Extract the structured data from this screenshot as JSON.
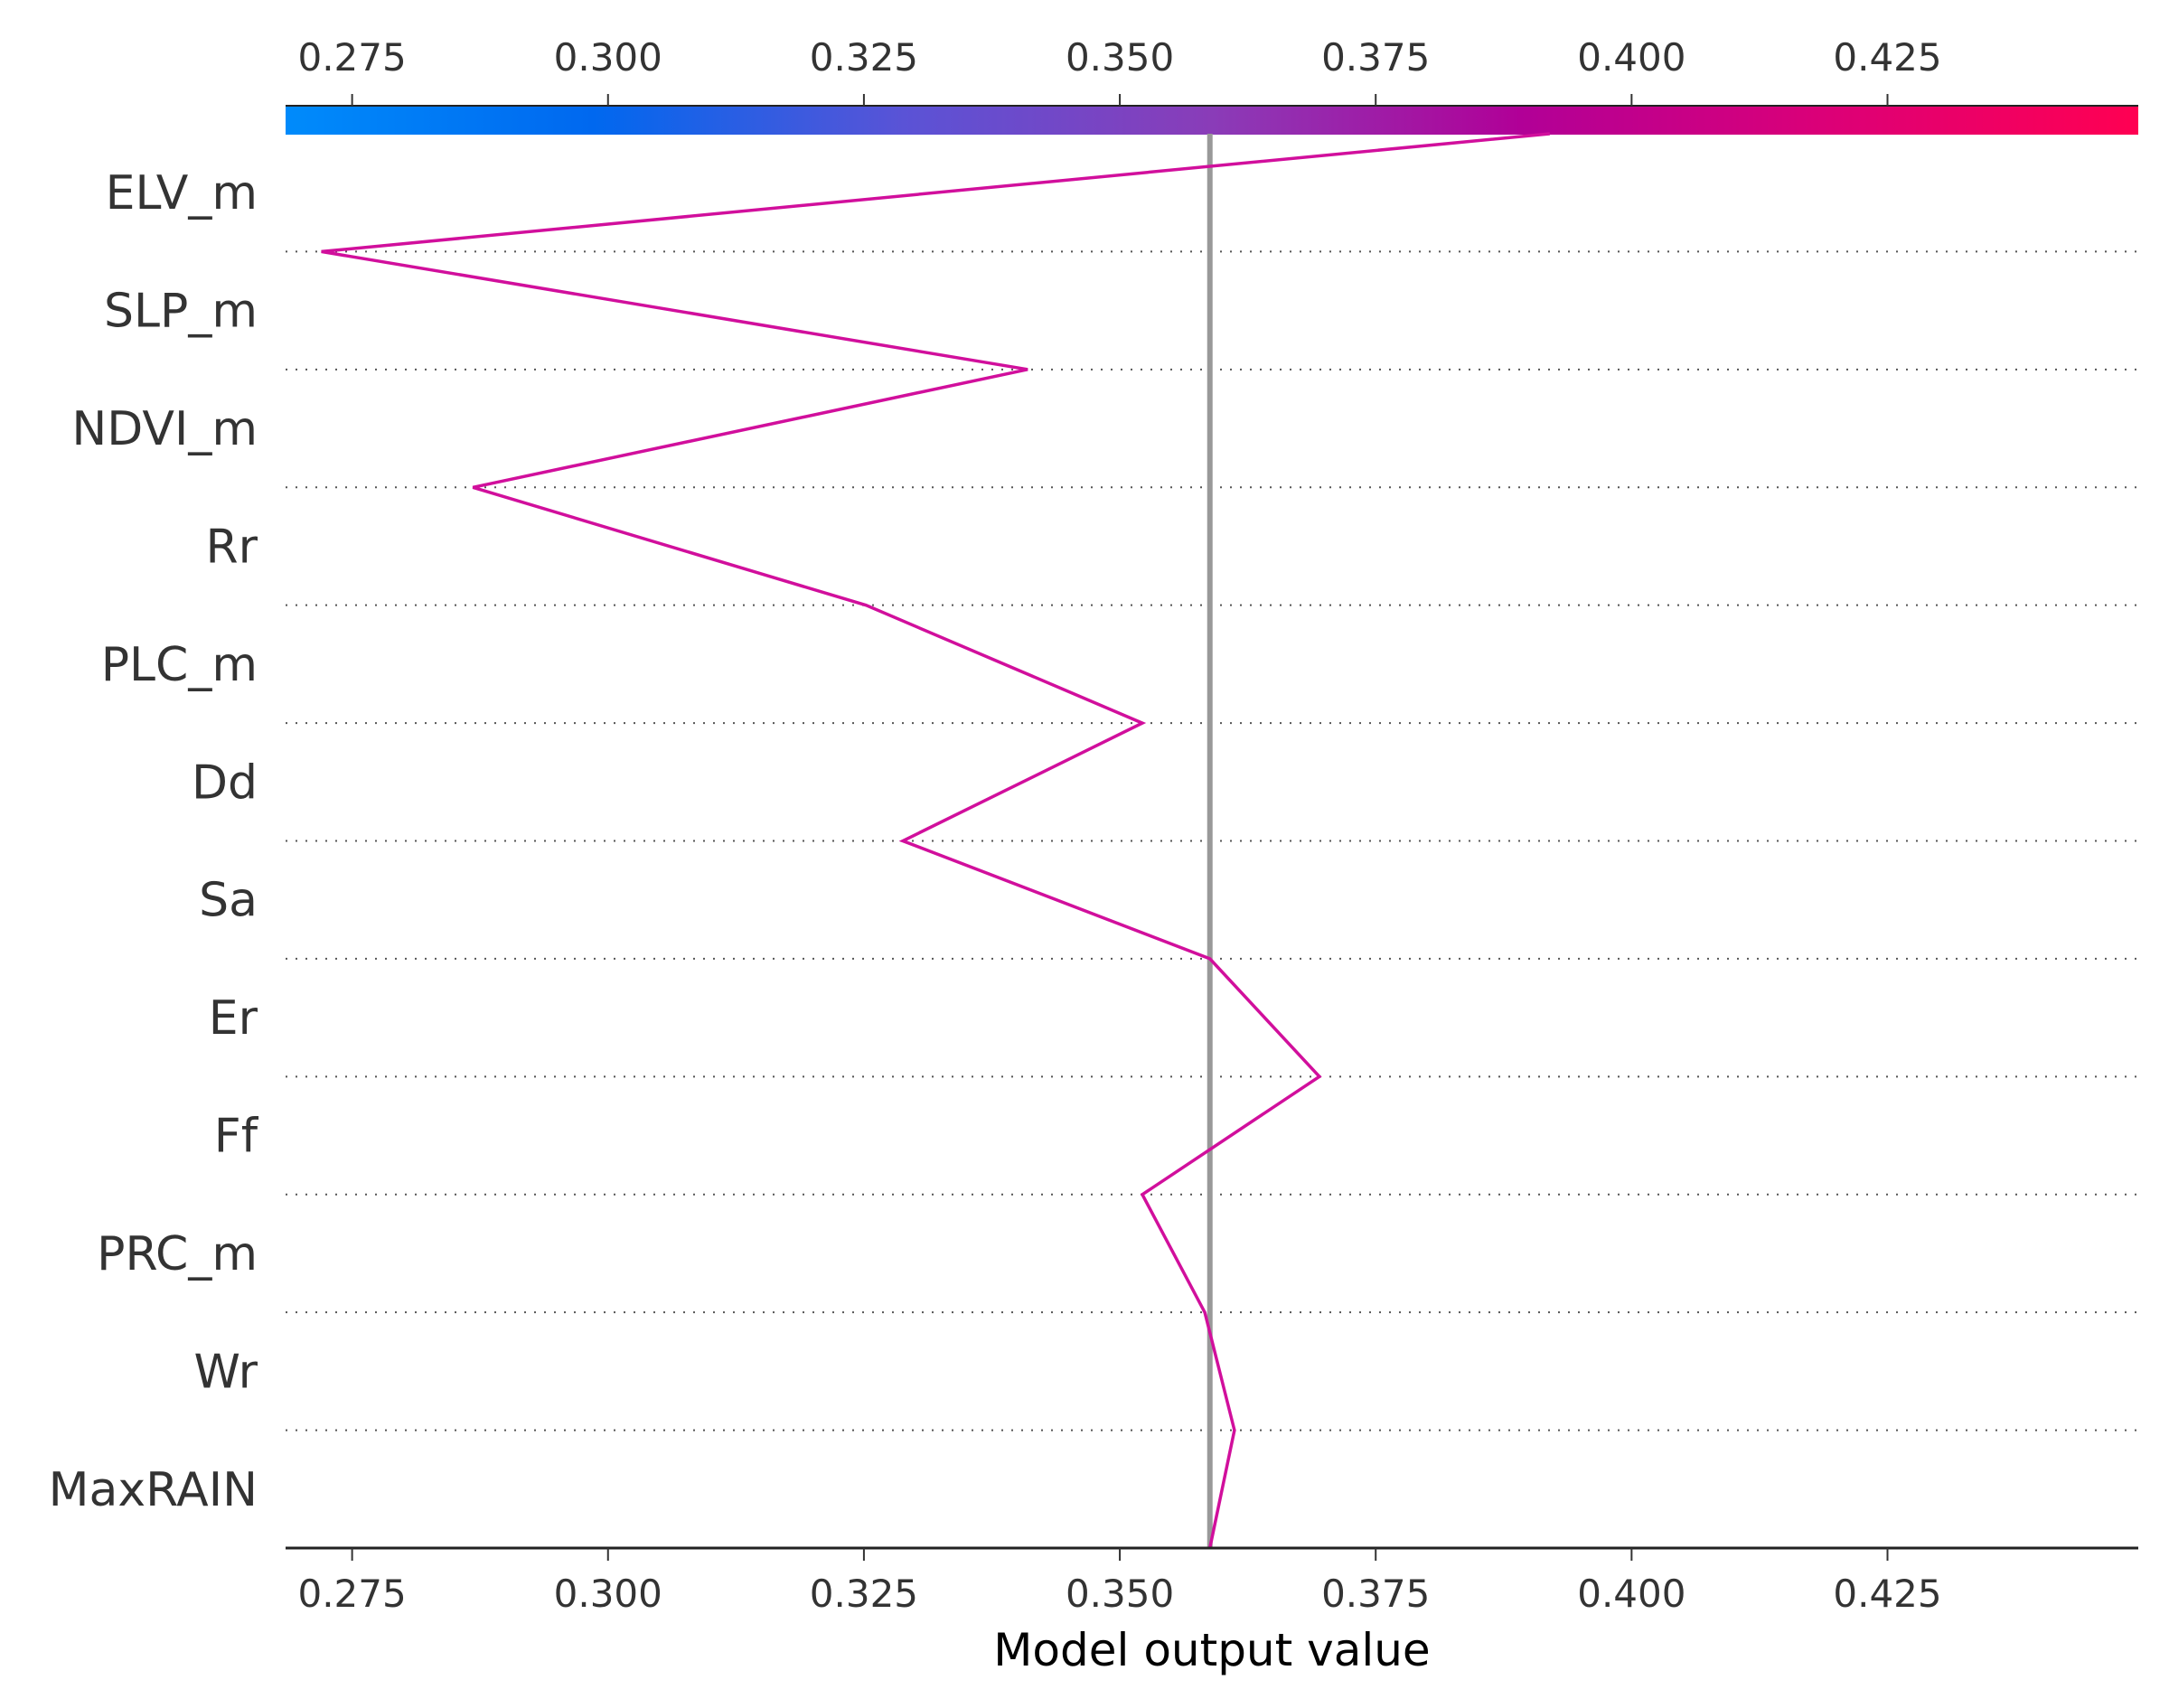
{
  "chart_data": {
    "type": "line",
    "title": "",
    "xlabel": "Model output value",
    "ylabel": "",
    "xlim": [
      0.2685,
      0.4495
    ],
    "x_ticks": [
      "0.275",
      "0.300",
      "0.325",
      "0.350",
      "0.375",
      "0.400",
      "0.425"
    ],
    "x_tick_values": [
      0.275,
      0.3,
      0.325,
      0.35,
      0.375,
      0.4,
      0.425
    ],
    "features": [
      "ELV_m",
      "SLP_m",
      "NDVI_m",
      "Rr",
      "PLC_m",
      "Dd",
      "Sa",
      "Er",
      "Ff",
      "PRC_m",
      "Wr",
      "MaxRAIN"
    ],
    "base_value": 0.3588,
    "decision_path": [
      {
        "feature": "base",
        "value": 0.3588
      },
      {
        "feature": "MaxRAIN",
        "value": 0.3612
      },
      {
        "feature": "Wr",
        "value": 0.3583
      },
      {
        "feature": "PRC_m",
        "value": 0.3522
      },
      {
        "feature": "Ff",
        "value": 0.3695
      },
      {
        "feature": "Er",
        "value": 0.3588
      },
      {
        "feature": "Sa",
        "value": 0.3288
      },
      {
        "feature": "Dd",
        "value": 0.3522
      },
      {
        "feature": "PLC_m",
        "value": 0.3252
      },
      {
        "feature": "Rr",
        "value": 0.2868
      },
      {
        "feature": "NDVI_m",
        "value": 0.341
      },
      {
        "feature": "SLP_m",
        "value": 0.272
      },
      {
        "feature": "ELV_m",
        "value": 0.392
      }
    ],
    "line_color": "#d10f9c",
    "base_line_color": "#999999",
    "colorbar": {
      "range": [
        0.2685,
        0.4495
      ],
      "colors": [
        "#008bfb",
        "#0068ef",
        "#5a53d6",
        "#8a3cb8",
        "#b10097",
        "#dc0077",
        "#ff0052"
      ]
    },
    "grid": "dotted horizontal",
    "legend": "none"
  }
}
